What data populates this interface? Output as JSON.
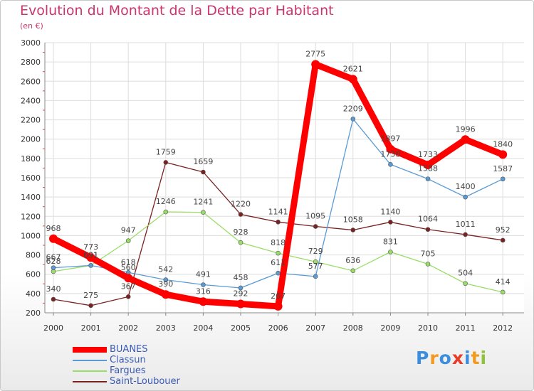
{
  "chart_data": {
    "type": "line",
    "title": "Evolution du Montant de la Dette par Habitant",
    "subtitle": "(en €)",
    "categories": [
      "2000",
      "2001",
      "2002",
      "2003",
      "2004",
      "2005",
      "2006",
      "2007",
      "2008",
      "2009",
      "2010",
      "2011",
      "2012"
    ],
    "ylim": [
      200,
      3000
    ],
    "yticks": [
      "200",
      "400",
      "600",
      "800",
      "1000",
      "1200",
      "1400",
      "1600",
      "1800",
      "2000",
      "2200",
      "2400",
      "2600",
      "2800",
      "3000"
    ],
    "grid": true,
    "legend_position": "bottom-left",
    "series": [
      {
        "name": "BUANES",
        "color": "#ff0000",
        "values": [
          968,
          773,
          560,
          390,
          316,
          292,
          267,
          2775,
          2621,
          1897,
          1733,
          1996,
          1840
        ]
      },
      {
        "name": "Classun",
        "color": "#5a9bd5",
        "values": [
          667,
          691,
          618,
          542,
          491,
          458,
          611,
          577,
          2209,
          1738,
          1588,
          1400,
          1587
        ]
      },
      {
        "name": "Fargues",
        "color": "#99dd66",
        "values": [
          628,
          691,
          947,
          1246,
          1241,
          928,
          818,
          729,
          636,
          831,
          705,
          504,
          414
        ]
      },
      {
        "name": "Saint-Loubouer",
        "color": "#7a2222",
        "values": [
          340,
          275,
          367,
          1759,
          1659,
          1220,
          1141,
          1095,
          1058,
          1140,
          1064,
          1011,
          952
        ]
      }
    ]
  },
  "logo": {
    "letters": [
      "P",
      "r",
      "o",
      "x",
      "i",
      "t",
      "i"
    ],
    "colors": [
      "#3b8ede",
      "#f29a1f",
      "#3b8ede",
      "#e63c2a",
      "#3b8ede",
      "#f29a1f",
      "#8fc33a"
    ]
  }
}
